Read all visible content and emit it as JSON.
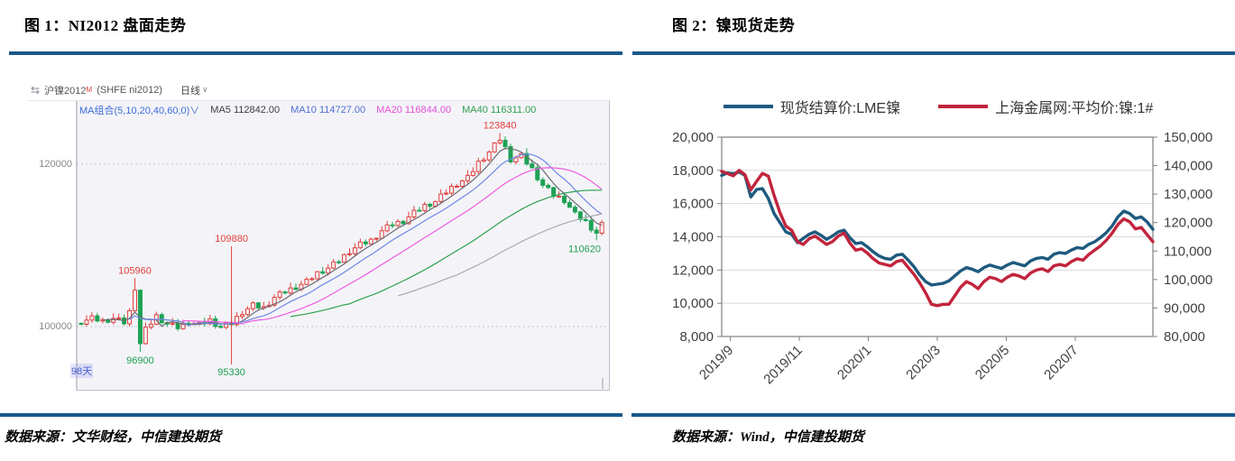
{
  "figure1": {
    "title": "图 1：NI2012 盘面走势",
    "source": "数据来源：文华财经，中信建投期货",
    "toolbar": {
      "link_icon": "⇆",
      "symbol": "沪镍2012",
      "superscript": "M",
      "code": "(SHFE ni2012)",
      "period": "日线",
      "caret": "∨"
    },
    "ma_bar": {
      "combo": "MA组合(5,10,20,40,60,0)",
      "caret": "∨",
      "items": [
        {
          "label": "MA5 112842.00",
          "color": "#3c3c44"
        },
        {
          "label": "MA10 114727.00",
          "color": "#4d6fd2"
        },
        {
          "label": "MA20 116844.00",
          "color": "#e14fd8"
        },
        {
          "label": "MA40 116311.00",
          "color": "#2f9e4f"
        }
      ]
    },
    "days_label": "98天"
  },
  "figure2": {
    "title": "图 2：镍现货走势",
    "source": "数据来源：Wind，中信建投期货"
  },
  "accent": {
    "rule_blue": "#19588A"
  },
  "chart_data": [
    {
      "type": "candlestick",
      "title": "沪镍2012 (SHFE ni2012) 日线",
      "visible_days": 98,
      "y_ticks": [
        {
          "label": "120000",
          "price": 120000
        },
        {
          "label": "100000",
          "price": 100000
        }
      ],
      "ma_values": {
        "MA5": 112842.0,
        "MA10": 114727.0,
        "MA20": 116844.0,
        "MA40": 116311.0
      },
      "close_keypoints": [
        [
          0,
          100600
        ],
        [
          2,
          101000
        ],
        [
          4,
          100700
        ],
        [
          6,
          101000
        ],
        [
          8,
          100500
        ],
        [
          9,
          101800
        ],
        [
          10,
          104800
        ],
        [
          11,
          97900
        ],
        [
          12,
          99600
        ],
        [
          14,
          101300
        ],
        [
          16,
          100300
        ],
        [
          18,
          99900
        ],
        [
          20,
          100600
        ],
        [
          22,
          100200
        ],
        [
          24,
          100800
        ],
        [
          26,
          99900
        ],
        [
          28,
          100400
        ],
        [
          30,
          101800
        ],
        [
          32,
          102600
        ],
        [
          34,
          102300
        ],
        [
          36,
          103600
        ],
        [
          38,
          104300
        ],
        [
          40,
          104900
        ],
        [
          42,
          105500
        ],
        [
          44,
          106600
        ],
        [
          46,
          107200
        ],
        [
          48,
          108100
        ],
        [
          50,
          109300
        ],
        [
          52,
          110100
        ],
        [
          54,
          110600
        ],
        [
          56,
          111800
        ],
        [
          58,
          112600
        ],
        [
          60,
          113000
        ],
        [
          62,
          114000
        ],
        [
          64,
          114900
        ],
        [
          66,
          115400
        ],
        [
          68,
          116600
        ],
        [
          70,
          117600
        ],
        [
          72,
          118300
        ],
        [
          74,
          120200
        ],
        [
          76,
          121500
        ],
        [
          78,
          123100
        ],
        [
          79,
          122000
        ],
        [
          80,
          120600
        ],
        [
          82,
          121000
        ],
        [
          84,
          119400
        ],
        [
          86,
          117400
        ],
        [
          88,
          116200
        ],
        [
          90,
          115600
        ],
        [
          92,
          113800
        ],
        [
          94,
          112900
        ],
        [
          96,
          111500
        ],
        [
          97,
          112500
        ]
      ],
      "marks": [
        {
          "day": 10,
          "price": 105960,
          "label": "105960",
          "pos": "above",
          "color": "#e0403c"
        },
        {
          "day": 11,
          "price": 96900,
          "label": "96900",
          "pos": "below",
          "color": "#1f9e4e"
        },
        {
          "day": 28,
          "type": "vline",
          "from": 109880,
          "to": 95330,
          "label_top": "109880",
          "label_bottom": "95330",
          "color": "#e0403c",
          "top_color": "#e0403c",
          "bottom_color": "#1f9e4e"
        },
        {
          "day": 78,
          "price": 123840,
          "label": "123840",
          "pos": "above",
          "color": "#e0403c"
        },
        {
          "day": 96,
          "price": 110620,
          "label": "110620",
          "pos": "below",
          "color": "#1f9e4e"
        }
      ],
      "colors": {
        "up": "#e0403c",
        "down": "#1fa254",
        "bg": "#f4f4f8"
      }
    },
    {
      "type": "line",
      "series": [
        {
          "name": "现货结算价:LME镍",
          "axis": "left",
          "color": "#1e5a7e",
          "data_name": "lme-nickel-series",
          "values": [
            17700,
            17850,
            17800,
            17900,
            17700,
            16400,
            16850,
            16900,
            16300,
            15400,
            14850,
            14300,
            14150,
            13650,
            13900,
            14150,
            14300,
            14100,
            13850,
            14050,
            14300,
            14400,
            13950,
            13600,
            13650,
            13400,
            13100,
            12850,
            12700,
            12650,
            12900,
            12950,
            12600,
            12200,
            11700,
            11300,
            11100,
            11150,
            11200,
            11350,
            11650,
            11950,
            12150,
            12050,
            11900,
            12150,
            12300,
            12200,
            12100,
            12300,
            12450,
            12350,
            12250,
            12550,
            12700,
            12750,
            12650,
            12950,
            13050,
            13000,
            13200,
            13350,
            13300,
            13550,
            13700,
            13950,
            14250,
            14650,
            15200,
            15550,
            15400,
            15100,
            15200,
            14900,
            14450
          ]
        },
        {
          "name": "上海金属网:平均价:镍:1#",
          "axis": "right",
          "color": "#c2243c",
          "data_name": "smm-nickel-series",
          "values": [
            138000,
            137200,
            136400,
            138300,
            136800,
            131500,
            134500,
            137300,
            136300,
            129500,
            123500,
            118800,
            117300,
            113300,
            112300,
            114300,
            115300,
            113800,
            112300,
            113300,
            115300,
            116300,
            112800,
            110300,
            110800,
            109300,
            107300,
            105800,
            105300,
            104800,
            106300,
            106800,
            104300,
            101800,
            98800,
            95300,
            91300,
            90800,
            91300,
            91300,
            94300,
            97300,
            99300,
            98300,
            96800,
            99300,
            100800,
            100300,
            99300,
            100800,
            101800,
            101300,
            100300,
            102300,
            103300,
            103800,
            102800,
            104800,
            105300,
            104800,
            106300,
            107300,
            106800,
            108800,
            110300,
            111800,
            113800,
            116300,
            119300,
            121300,
            120300,
            117800,
            118300,
            115800,
            113300
          ]
        }
      ],
      "left_axis": {
        "min": 8000,
        "max": 20000,
        "tick_labels": [
          "20,000",
          "18,000",
          "16,000",
          "14,000",
          "12,000",
          "10,000",
          "8,000"
        ]
      },
      "right_axis": {
        "min": 80000,
        "max": 150000,
        "tick_labels": [
          "150,000",
          "140,000",
          "130,000",
          "120,000",
          "110,000",
          "100,000",
          "90,000",
          "80,000"
        ]
      },
      "x_ticks": [
        {
          "label": "2019/9",
          "f": 0.02
        },
        {
          "label": "2019/11",
          "f": 0.18
        },
        {
          "label": "2020/1",
          "f": 0.34
        },
        {
          "label": "2020/3",
          "f": 0.5
        },
        {
          "label": "2020/5",
          "f": 0.66
        },
        {
          "label": "2020/7",
          "f": 0.82
        }
      ],
      "legend_position": "top",
      "grid": true
    }
  ]
}
